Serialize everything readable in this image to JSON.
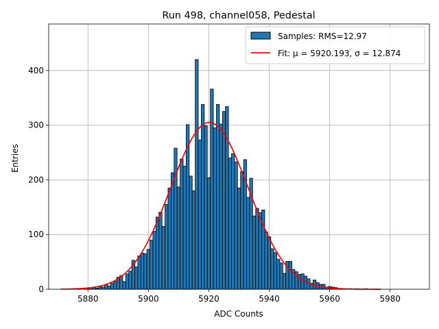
{
  "chart_data": {
    "type": "bar",
    "title": "Run 498, channel058, Pedestal",
    "xlabel": "ADC Counts",
    "ylabel": "Entries",
    "xlim": [
      5867,
      5993
    ],
    "ylim": [
      0,
      485
    ],
    "xticks": [
      5880,
      5900,
      5920,
      5940,
      5960,
      5980
    ],
    "yticks": [
      0,
      100,
      200,
      300,
      400
    ],
    "grid": true,
    "legend_position": "top-right",
    "bin_width": 1,
    "histogram": {
      "name": "Samples: RMS=12.97",
      "color": "#1f77b4",
      "edgecolor": "#000000",
      "bins": [
        {
          "x": 5875,
          "y": 1
        },
        {
          "x": 5876,
          "y": 0
        },
        {
          "x": 5877,
          "y": 1
        },
        {
          "x": 5878,
          "y": 0
        },
        {
          "x": 5879,
          "y": 2
        },
        {
          "x": 5880,
          "y": 2
        },
        {
          "x": 5881,
          "y": 1
        },
        {
          "x": 5882,
          "y": 3
        },
        {
          "x": 5883,
          "y": 2
        },
        {
          "x": 5884,
          "y": 5
        },
        {
          "x": 5885,
          "y": 4
        },
        {
          "x": 5886,
          "y": 8
        },
        {
          "x": 5887,
          "y": 6
        },
        {
          "x": 5888,
          "y": 11
        },
        {
          "x": 5889,
          "y": 14
        },
        {
          "x": 5890,
          "y": 22
        },
        {
          "x": 5891,
          "y": 25
        },
        {
          "x": 5892,
          "y": 14
        },
        {
          "x": 5893,
          "y": 28
        },
        {
          "x": 5894,
          "y": 33
        },
        {
          "x": 5895,
          "y": 53
        },
        {
          "x": 5896,
          "y": 41
        },
        {
          "x": 5897,
          "y": 61
        },
        {
          "x": 5898,
          "y": 66
        },
        {
          "x": 5899,
          "y": 65
        },
        {
          "x": 5900,
          "y": 73
        },
        {
          "x": 5901,
          "y": 90
        },
        {
          "x": 5902,
          "y": 106
        },
        {
          "x": 5903,
          "y": 132
        },
        {
          "x": 5904,
          "y": 141
        },
        {
          "x": 5905,
          "y": 115
        },
        {
          "x": 5906,
          "y": 155
        },
        {
          "x": 5907,
          "y": 185
        },
        {
          "x": 5908,
          "y": 213
        },
        {
          "x": 5909,
          "y": 258
        },
        {
          "x": 5910,
          "y": 187
        },
        {
          "x": 5911,
          "y": 238
        },
        {
          "x": 5912,
          "y": 225
        },
        {
          "x": 5913,
          "y": 301
        },
        {
          "x": 5914,
          "y": 207
        },
        {
          "x": 5915,
          "y": 180
        },
        {
          "x": 5916,
          "y": 420
        },
        {
          "x": 5917,
          "y": 273
        },
        {
          "x": 5918,
          "y": 338
        },
        {
          "x": 5919,
          "y": 299
        },
        {
          "x": 5920,
          "y": 204
        },
        {
          "x": 5921,
          "y": 366
        },
        {
          "x": 5922,
          "y": 295
        },
        {
          "x": 5923,
          "y": 338
        },
        {
          "x": 5924,
          "y": 302
        },
        {
          "x": 5925,
          "y": 325
        },
        {
          "x": 5926,
          "y": 334
        },
        {
          "x": 5927,
          "y": 240
        },
        {
          "x": 5928,
          "y": 248
        },
        {
          "x": 5929,
          "y": 233
        },
        {
          "x": 5930,
          "y": 185
        },
        {
          "x": 5931,
          "y": 215
        },
        {
          "x": 5932,
          "y": 237
        },
        {
          "x": 5933,
          "y": 168
        },
        {
          "x": 5934,
          "y": 203
        },
        {
          "x": 5935,
          "y": 134
        },
        {
          "x": 5936,
          "y": 148
        },
        {
          "x": 5937,
          "y": 140
        },
        {
          "x": 5938,
          "y": 145
        },
        {
          "x": 5939,
          "y": 105
        },
        {
          "x": 5940,
          "y": 96
        },
        {
          "x": 5941,
          "y": 74
        },
        {
          "x": 5942,
          "y": 67
        },
        {
          "x": 5943,
          "y": 55
        },
        {
          "x": 5944,
          "y": 48
        },
        {
          "x": 5945,
          "y": 29
        },
        {
          "x": 5946,
          "y": 51
        },
        {
          "x": 5947,
          "y": 51
        },
        {
          "x": 5948,
          "y": 36
        },
        {
          "x": 5949,
          "y": 32
        },
        {
          "x": 5950,
          "y": 27
        },
        {
          "x": 5951,
          "y": 28
        },
        {
          "x": 5952,
          "y": 24
        },
        {
          "x": 5953,
          "y": 19
        },
        {
          "x": 5954,
          "y": 11
        },
        {
          "x": 5955,
          "y": 17
        },
        {
          "x": 5956,
          "y": 12
        },
        {
          "x": 5957,
          "y": 9
        },
        {
          "x": 5958,
          "y": 9
        },
        {
          "x": 5959,
          "y": 4
        },
        {
          "x": 5960,
          "y": 5
        },
        {
          "x": 5961,
          "y": 4
        },
        {
          "x": 5962,
          "y": 3
        },
        {
          "x": 5963,
          "y": 1
        },
        {
          "x": 5964,
          "y": 1
        },
        {
          "x": 5965,
          "y": 1
        },
        {
          "x": 5966,
          "y": 0
        },
        {
          "x": 5967,
          "y": 1
        },
        {
          "x": 5968,
          "y": 0
        },
        {
          "x": 5969,
          "y": 1
        },
        {
          "x": 5970,
          "y": 0
        },
        {
          "x": 5971,
          "y": 0
        },
        {
          "x": 5972,
          "y": 1
        }
      ]
    },
    "fit": {
      "name": "Fit: μ = 5920.193, σ = 12.874",
      "type": "gaussian",
      "mu": 5920.193,
      "sigma": 12.874,
      "amplitude": 305,
      "x_range": [
        5871,
        5977
      ],
      "color": "#ff0000"
    }
  }
}
